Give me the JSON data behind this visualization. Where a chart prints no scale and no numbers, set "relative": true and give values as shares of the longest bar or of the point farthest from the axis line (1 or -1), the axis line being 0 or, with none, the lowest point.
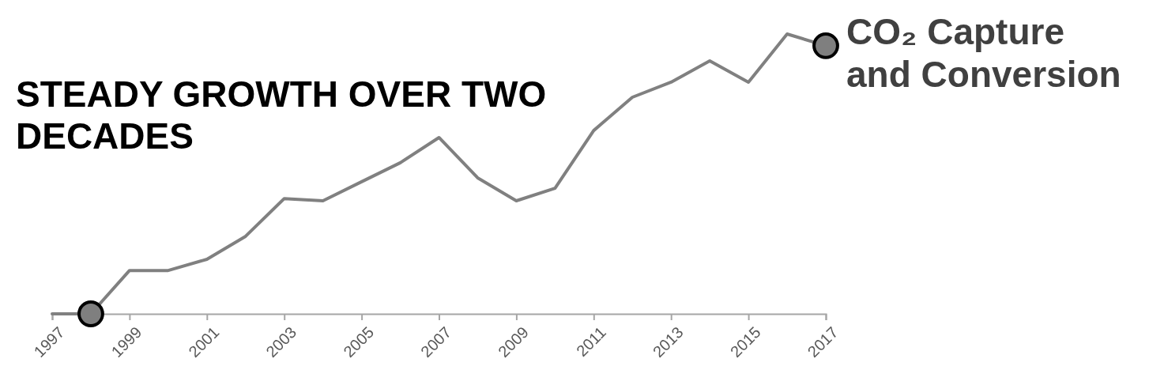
{
  "chart_data": {
    "type": "line",
    "title": "STEADY GROWTH OVER TWO DECADES",
    "relative": true,
    "x": [
      1997,
      1998,
      1999,
      2000,
      2001,
      2002,
      2003,
      2004,
      2005,
      2006,
      2007,
      2008,
      2009,
      2010,
      2011,
      2012,
      2013,
      2014,
      2015,
      2016,
      2017
    ],
    "xlim": [
      1997,
      2017
    ],
    "xticks": [
      1997,
      1999,
      2001,
      2003,
      2005,
      2007,
      2009,
      2011,
      2013,
      2015,
      2017
    ],
    "series": [
      {
        "name": "CO₂ Capture and Conversion",
        "color": "#808080",
        "marker": "none",
        "values": [
          0,
          0,
          0.155,
          0.155,
          0.195,
          0.277,
          0.412,
          0.404,
          0.472,
          0.54,
          0.63,
          0.486,
          0.404,
          0.449,
          0.655,
          0.774,
          0.828,
          0.904,
          0.828,
          1,
          0.958
        ]
      },
      {
        "type": "scatter",
        "color": "#7f7f7f",
        "marker": "circle",
        "x": [
          1998,
          2017
        ],
        "values": [
          0,
          0.958
        ]
      }
    ]
  }
}
